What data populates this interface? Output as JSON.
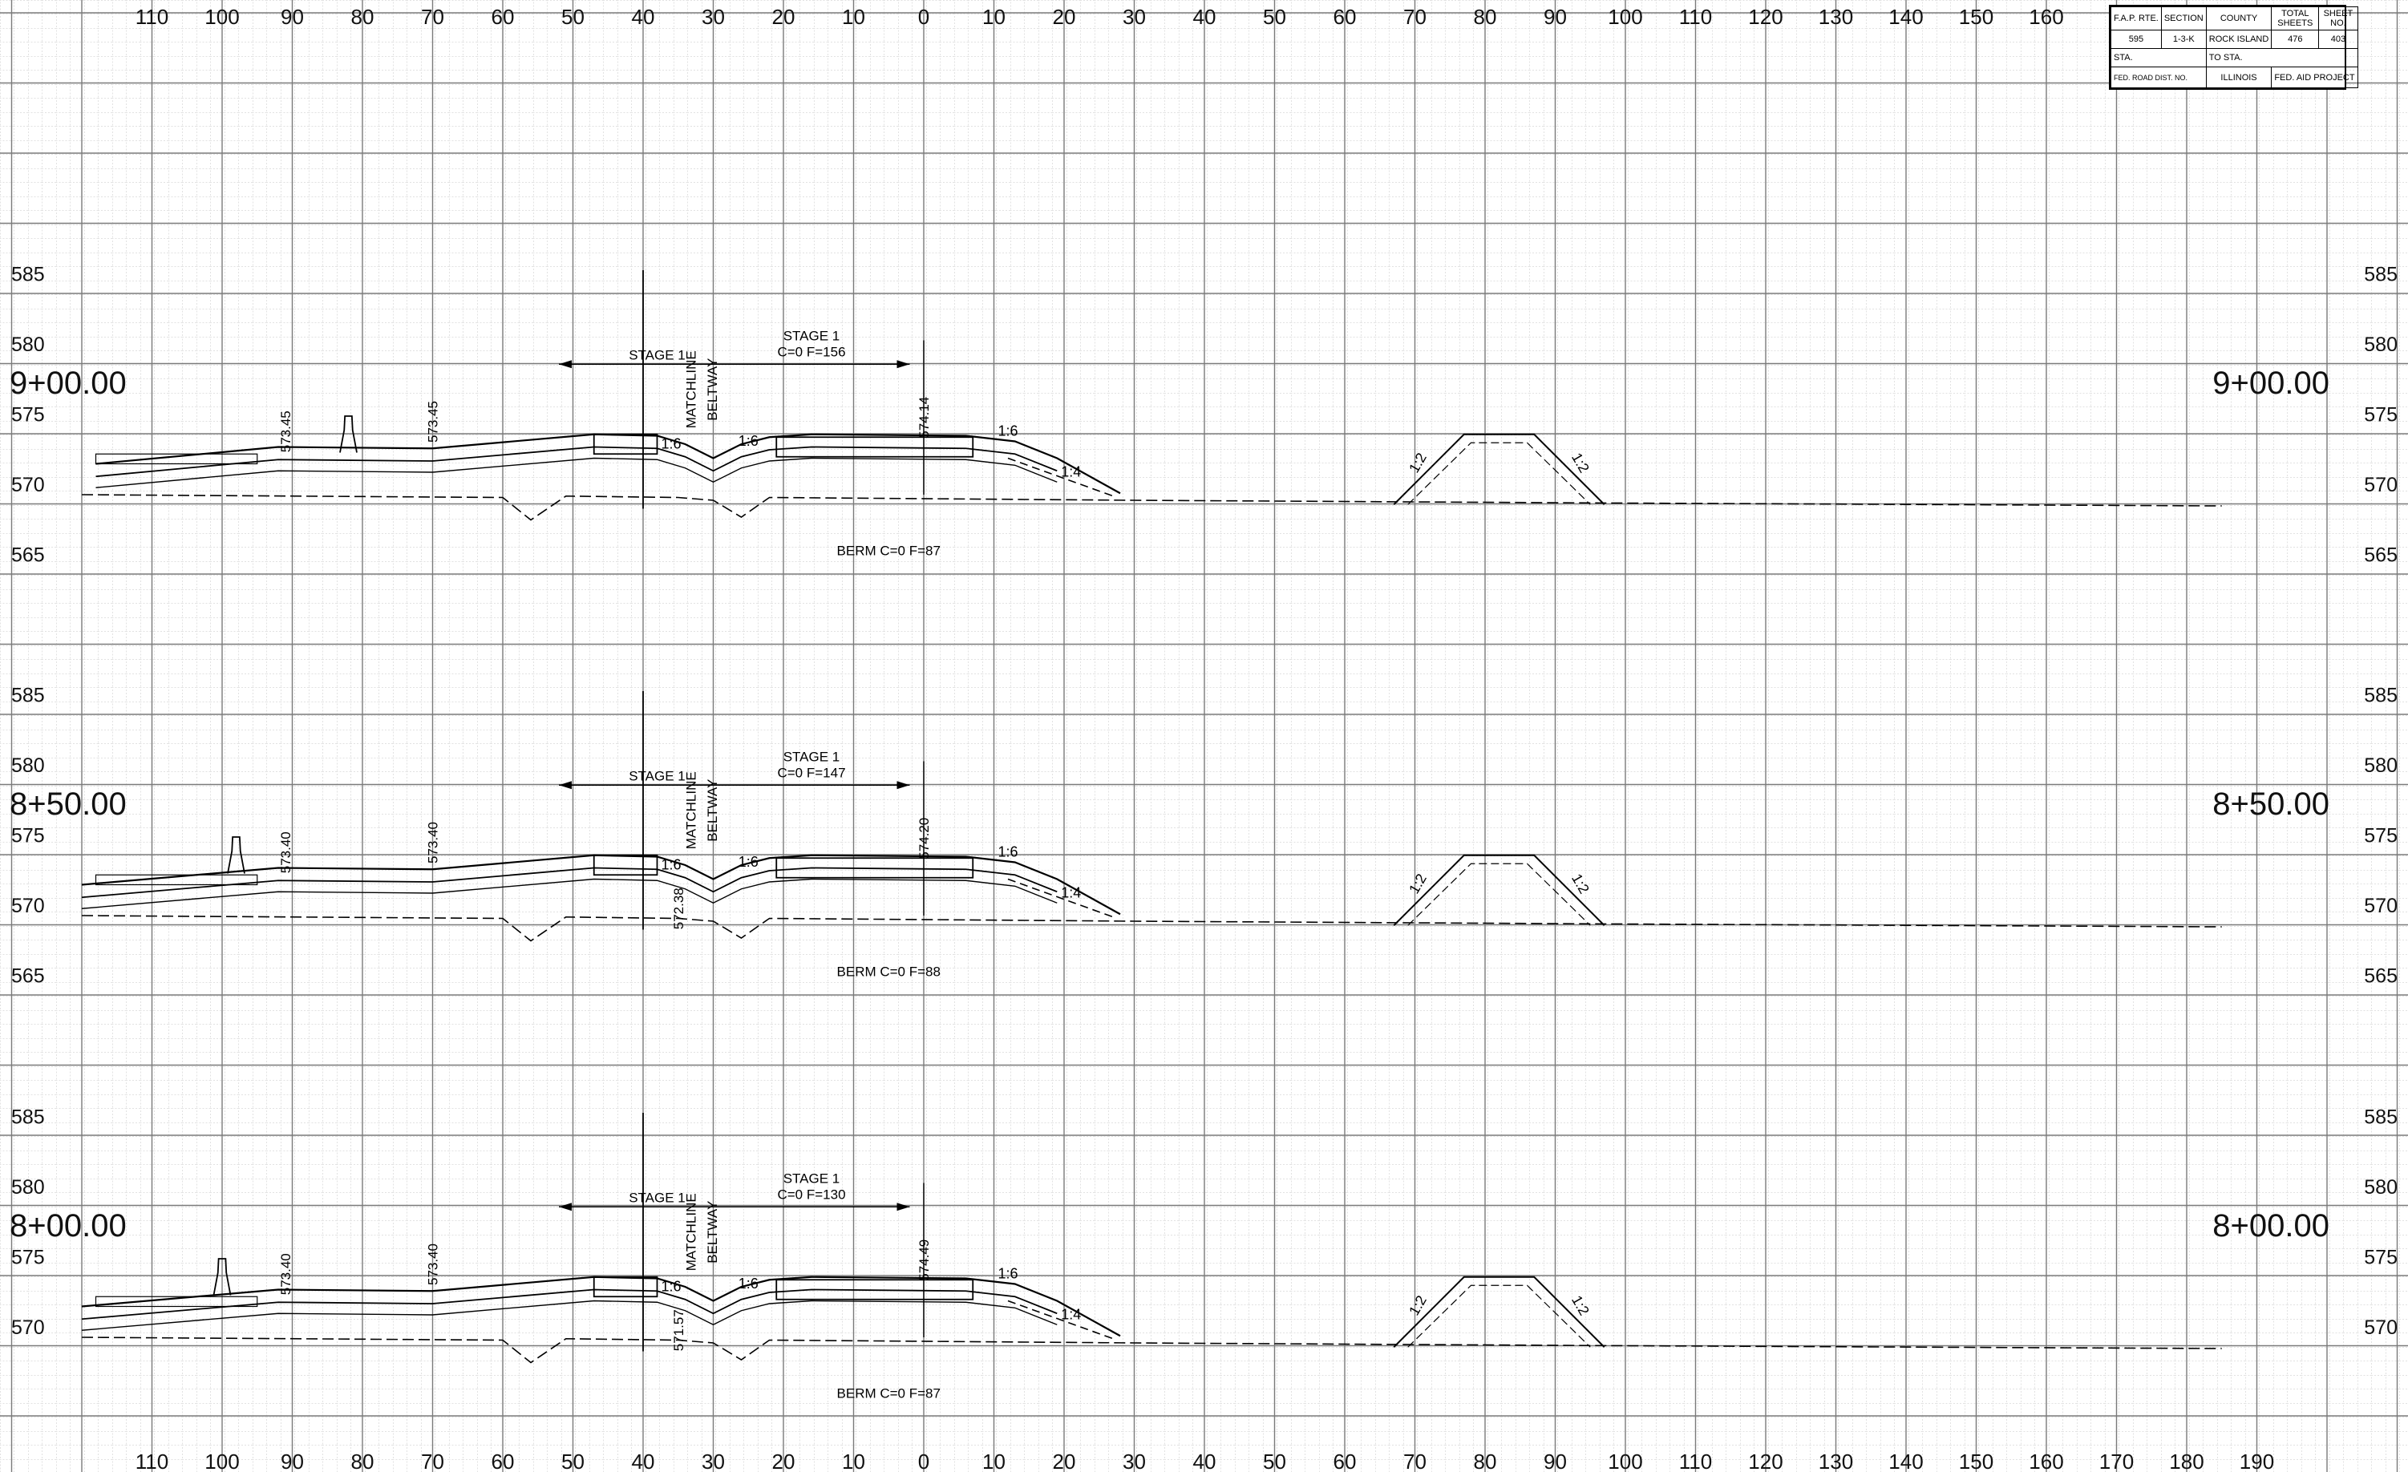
{
  "title_block": {
    "fap_rte_label": "F.A.P. RTE.",
    "fap_rte_value": "595",
    "section_label": "SECTION",
    "section_value": "1-3-K",
    "county_label": "COUNTY",
    "county_value": "ROCK ISLAND",
    "total_sheets_label": "TOTAL SHEETS",
    "total_sheets_value": "476",
    "sheet_no_label": "SHEET NO.",
    "sheet_no_value": "403",
    "sta_label": "STA.",
    "to_sta_label": "TO STA.",
    "fed_road_dist_label": "FED. ROAD DIST. NO.",
    "state_label": "ILLINOIS",
    "fed_aid_label": "FED. AID PROJECT"
  },
  "offset_axis": {
    "top_labels": [
      "110",
      "100",
      "90",
      "80",
      "70",
      "60",
      "50",
      "40",
      "30",
      "20",
      "10",
      "0",
      "10",
      "20",
      "30",
      "40",
      "50",
      "60",
      "70",
      "80",
      "90",
      "100",
      "110",
      "120",
      "130",
      "140",
      "150",
      "160"
    ],
    "bottom_labels": [
      "110",
      "100",
      "90",
      "80",
      "70",
      "60",
      "50",
      "40",
      "30",
      "20",
      "10",
      "0",
      "10",
      "20",
      "30",
      "40",
      "50",
      "60",
      "70",
      "80",
      "90",
      "100",
      "110",
      "120",
      "130",
      "140",
      "150",
      "160",
      "170",
      "180",
      "190"
    ]
  },
  "cross_sections": [
    {
      "station": "9+00.00",
      "elevation_labels": [
        "585",
        "580",
        "575",
        "570",
        "565"
      ],
      "stage_label": "STAGE 1",
      "stage_note_1": "STAGE 1",
      "stage_note_2": "C=0 F=156",
      "matchline_label": "MATCHLINE",
      "beltway_label": "BELTWAY",
      "berm_label": "BERM C=0 F=87",
      "elev_marks": [
        "573.45",
        "573.45",
        "574.14"
      ],
      "slope_labels": [
        "1:6",
        "1:6",
        "1:6",
        "1:4",
        "1:2",
        "1:2"
      ]
    },
    {
      "station": "8+50.00",
      "elevation_labels": [
        "585",
        "580",
        "575",
        "570",
        "565"
      ],
      "stage_label": "STAGE 1",
      "stage_note_1": "STAGE 1",
      "stage_note_2": "C=0 F=147",
      "matchline_label": "MATCHLINE",
      "beltway_label": "BELTWAY",
      "berm_label": "BERM C=0 F=88",
      "elev_marks": [
        "573.40",
        "573.40",
        "574.20",
        "572.38"
      ],
      "slope_labels": [
        "1:6",
        "1:6",
        "1:6",
        "1:4",
        "1:2",
        "1:2"
      ]
    },
    {
      "station": "8+00.00",
      "elevation_labels": [
        "585",
        "580",
        "575",
        "570"
      ],
      "stage_label": "STAGE 1",
      "stage_note_1": "STAGE 1",
      "stage_note_2": "C=0 F=130",
      "matchline_label": "MATCHLINE",
      "beltway_label": "BELTWAY",
      "berm_label": "BERM C=0 F=87",
      "elev_marks": [
        "573.40",
        "573.40",
        "574.49",
        "571.57"
      ],
      "slope_labels": [
        "1:6",
        "1:6",
        "1:6",
        "1:4",
        "1:2",
        "1:2"
      ]
    }
  ],
  "colors": {
    "line": "#000000",
    "grid_major": "#7a7a7a",
    "grid_minor": "#c4c4c4",
    "text": "#111111"
  }
}
